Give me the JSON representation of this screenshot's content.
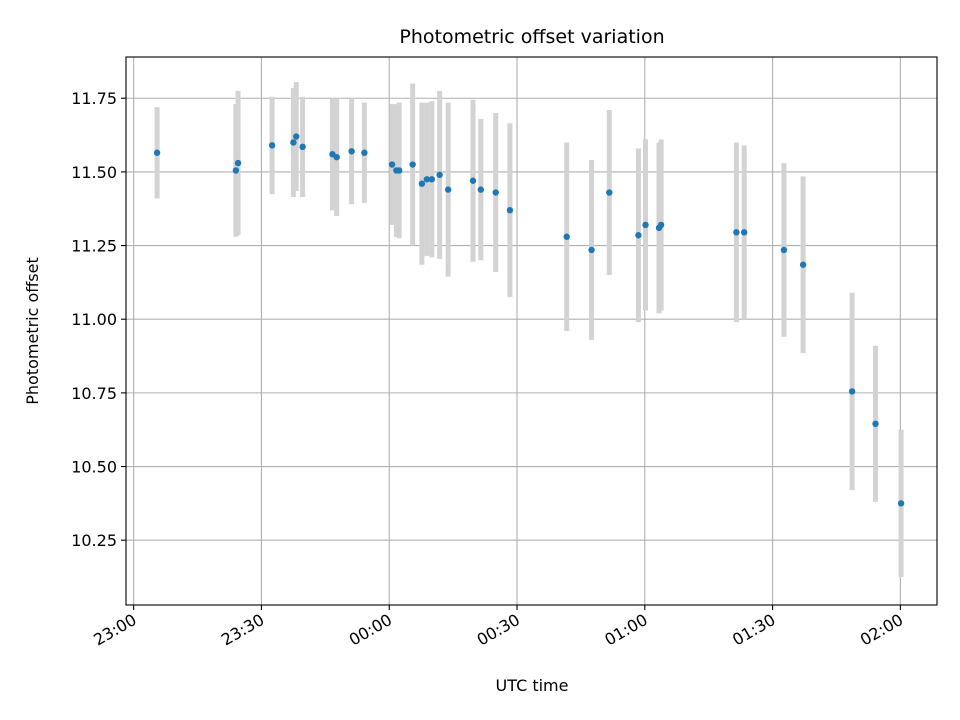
{
  "chart_data": {
    "type": "scatter",
    "title": "Photometric offset variation",
    "xlabel": "UTC time",
    "ylabel": "Photometric offset",
    "xlim": [
      "22:58:12",
      "02:08:36"
    ],
    "ylim": [
      10.03,
      11.89
    ],
    "x_ticks": [
      "23:00",
      "23:30",
      "00:00",
      "00:30",
      "01:00",
      "01:30",
      "02:00"
    ],
    "x_tick_times": [
      "23:00:00",
      "23:30:00",
      "00:00:00",
      "00:30:00",
      "01:00:00",
      "01:30:00",
      "02:00:00"
    ],
    "y_ticks": [
      10.25,
      10.5,
      10.75,
      11.0,
      11.25,
      11.5,
      11.75
    ],
    "y_tick_labels": [
      "10.25",
      "10.50",
      "10.75",
      "11.00",
      "11.25",
      "11.50",
      "11.75"
    ],
    "grid": true,
    "colors": {
      "point": "#1f77b4",
      "errorbar": "#d3d3d3",
      "grid": "#b0b0b0",
      "axes": "#000000"
    },
    "series": [
      {
        "points": [
          {
            "time": "23:05:30",
            "y": 11.565,
            "err": 0.155
          },
          {
            "time": "23:24:00",
            "y": 11.505,
            "err": 0.225
          },
          {
            "time": "23:24:30",
            "y": 11.53,
            "err": 0.245
          },
          {
            "time": "23:32:30",
            "y": 11.59,
            "err": 0.165
          },
          {
            "time": "23:37:30",
            "y": 11.6,
            "err": 0.185
          },
          {
            "time": "23:38:10",
            "y": 11.62,
            "err": 0.185
          },
          {
            "time": "23:39:40",
            "y": 11.585,
            "err": 0.17
          },
          {
            "time": "23:46:40",
            "y": 11.56,
            "err": 0.19
          },
          {
            "time": "23:47:40",
            "y": 11.55,
            "err": 0.2
          },
          {
            "time": "23:51:10",
            "y": 11.57,
            "err": 0.18
          },
          {
            "time": "23:54:10",
            "y": 11.565,
            "err": 0.17
          },
          {
            "time": "00:00:40",
            "y": 11.525,
            "err": 0.205
          },
          {
            "time": "00:01:40",
            "y": 11.505,
            "err": 0.225
          },
          {
            "time": "00:02:20",
            "y": 11.505,
            "err": 0.23
          },
          {
            "time": "00:05:30",
            "y": 11.525,
            "err": 0.275
          },
          {
            "time": "00:07:40",
            "y": 11.46,
            "err": 0.275
          },
          {
            "time": "00:08:50",
            "y": 11.475,
            "err": 0.26
          },
          {
            "time": "00:10:00",
            "y": 11.475,
            "err": 0.265
          },
          {
            "time": "00:11:50",
            "y": 11.49,
            "err": 0.285
          },
          {
            "time": "00:13:50",
            "y": 11.44,
            "err": 0.295
          },
          {
            "time": "00:19:40",
            "y": 11.47,
            "err": 0.275
          },
          {
            "time": "00:21:30",
            "y": 11.44,
            "err": 0.24
          },
          {
            "time": "00:25:00",
            "y": 11.43,
            "err": 0.27
          },
          {
            "time": "00:28:20",
            "y": 11.37,
            "err": 0.295
          },
          {
            "time": "00:41:40",
            "y": 11.28,
            "err": 0.32
          },
          {
            "time": "00:47:30",
            "y": 11.235,
            "err": 0.305
          },
          {
            "time": "00:51:40",
            "y": 11.43,
            "err": 0.28
          },
          {
            "time": "00:58:30",
            "y": 11.285,
            "err": 0.295
          },
          {
            "time": "01:00:10",
            "y": 11.32,
            "err": 0.29
          },
          {
            "time": "01:03:20",
            "y": 11.31,
            "err": 0.29
          },
          {
            "time": "01:03:50",
            "y": 11.32,
            "err": 0.29
          },
          {
            "time": "01:21:30",
            "y": 11.295,
            "err": 0.305
          },
          {
            "time": "01:23:20",
            "y": 11.295,
            "err": 0.295
          },
          {
            "time": "01:32:40",
            "y": 11.235,
            "err": 0.295
          },
          {
            "time": "01:37:10",
            "y": 11.185,
            "err": 0.3
          },
          {
            "time": "01:48:40",
            "y": 10.755,
            "err": 0.335
          },
          {
            "time": "01:54:10",
            "y": 10.645,
            "err": 0.265
          },
          {
            "time": "02:00:10",
            "y": 10.375,
            "err": 0.25
          }
        ]
      }
    ]
  }
}
